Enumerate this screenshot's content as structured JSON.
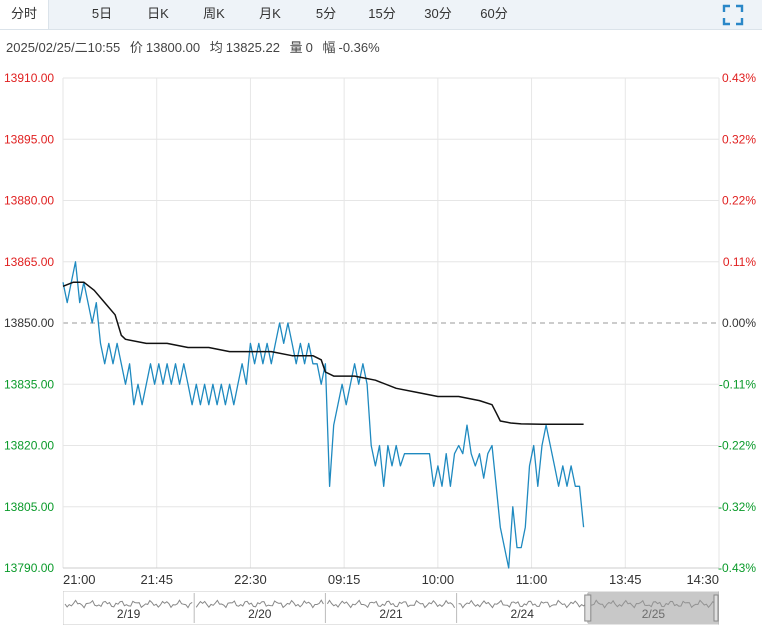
{
  "tabs": [
    {
      "label": "分时",
      "active": true
    },
    {
      "label": "5日",
      "active": false
    },
    {
      "label": "日K",
      "active": false
    },
    {
      "label": "周K",
      "active": false
    },
    {
      "label": "月K",
      "active": false
    },
    {
      "label": "5分",
      "active": false
    },
    {
      "label": "15分",
      "active": false
    },
    {
      "label": "30分",
      "active": false
    },
    {
      "label": "60分",
      "active": false
    }
  ],
  "info": {
    "datetime": "2025/02/25/二10:55",
    "price_label": "价",
    "price": "13800.00",
    "avg_label": "均",
    "avg": "13825.22",
    "volume_label": "量",
    "volume": "0",
    "change_label": "幅",
    "change": "-0.36%"
  },
  "colors": {
    "up": "#e02020",
    "down": "#0a9a2a",
    "price_line": "#1f8ac0",
    "avg_line": "#111111",
    "grid": "#e6e6e6",
    "base_line": "#999999"
  },
  "chart_data": {
    "type": "line",
    "y_left_ticks": [
      "13910.00",
      "13895.00",
      "13880.00",
      "13865.00",
      "13850.00",
      "13835.00",
      "13820.00",
      "13805.00",
      "13790.00"
    ],
    "y_right_ticks": [
      "0.43%",
      "0.32%",
      "0.22%",
      "0.11%",
      "0.00%",
      "-0.11%",
      "-0.22%",
      "-0.32%",
      "-0.43%"
    ],
    "ylim": [
      13790,
      13910
    ],
    "base_price": 13850,
    "x_ticks": [
      "21:00",
      "21:45",
      "22:30",
      "09:15",
      "10:00",
      "11:00",
      "13:45",
      "14:30"
    ],
    "x_tick_index": [
      0,
      45,
      90,
      135,
      180,
      225,
      270,
      315
    ],
    "x_count": 315,
    "series": [
      {
        "key": "price",
        "points": [
          [
            0,
            13860
          ],
          [
            2,
            13855
          ],
          [
            4,
            13860
          ],
          [
            6,
            13865
          ],
          [
            8,
            13855
          ],
          [
            10,
            13860
          ],
          [
            12,
            13855
          ],
          [
            14,
            13850
          ],
          [
            16,
            13855
          ],
          [
            18,
            13845
          ],
          [
            20,
            13840
          ],
          [
            22,
            13845
          ],
          [
            24,
            13840
          ],
          [
            26,
            13845
          ],
          [
            28,
            13840
          ],
          [
            30,
            13835
          ],
          [
            32,
            13840
          ],
          [
            34,
            13830
          ],
          [
            36,
            13835
          ],
          [
            38,
            13830
          ],
          [
            40,
            13835
          ],
          [
            42,
            13840
          ],
          [
            44,
            13835
          ],
          [
            46,
            13840
          ],
          [
            48,
            13835
          ],
          [
            50,
            13840
          ],
          [
            52,
            13835
          ],
          [
            54,
            13840
          ],
          [
            56,
            13835
          ],
          [
            58,
            13840
          ],
          [
            60,
            13835
          ],
          [
            62,
            13830
          ],
          [
            64,
            13835
          ],
          [
            66,
            13830
          ],
          [
            68,
            13835
          ],
          [
            70,
            13830
          ],
          [
            72,
            13835
          ],
          [
            74,
            13830
          ],
          [
            76,
            13835
          ],
          [
            78,
            13830
          ],
          [
            80,
            13835
          ],
          [
            82,
            13830
          ],
          [
            84,
            13835
          ],
          [
            86,
            13840
          ],
          [
            88,
            13835
          ],
          [
            90,
            13845
          ],
          [
            92,
            13840
          ],
          [
            94,
            13845
          ],
          [
            96,
            13840
          ],
          [
            98,
            13845
          ],
          [
            100,
            13840
          ],
          [
            102,
            13845
          ],
          [
            104,
            13850
          ],
          [
            106,
            13845
          ],
          [
            108,
            13850
          ],
          [
            110,
            13845
          ],
          [
            112,
            13840
          ],
          [
            114,
            13845
          ],
          [
            116,
            13840
          ],
          [
            118,
            13845
          ],
          [
            120,
            13840
          ],
          [
            122,
            13840
          ],
          [
            124,
            13835
          ],
          [
            126,
            13840
          ],
          [
            128,
            13810
          ],
          [
            130,
            13825
          ],
          [
            132,
            13830
          ],
          [
            134,
            13835
          ],
          [
            136,
            13830
          ],
          [
            138,
            13835
          ],
          [
            140,
            13840
          ],
          [
            142,
            13835
          ],
          [
            144,
            13840
          ],
          [
            146,
            13835
          ],
          [
            148,
            13820
          ],
          [
            150,
            13815
          ],
          [
            152,
            13820
          ],
          [
            154,
            13810
          ],
          [
            156,
            13820
          ],
          [
            158,
            13815
          ],
          [
            160,
            13820
          ],
          [
            162,
            13815
          ],
          [
            164,
            13818
          ],
          [
            166,
            13818
          ],
          [
            168,
            13818
          ],
          [
            170,
            13818
          ],
          [
            172,
            13818
          ],
          [
            174,
            13818
          ],
          [
            176,
            13818
          ],
          [
            178,
            13810
          ],
          [
            180,
            13815
          ],
          [
            182,
            13810
          ],
          [
            184,
            13818
          ],
          [
            186,
            13810
          ],
          [
            188,
            13818
          ],
          [
            190,
            13820
          ],
          [
            192,
            13818
          ],
          [
            194,
            13825
          ],
          [
            196,
            13818
          ],
          [
            198,
            13815
          ],
          [
            200,
            13818
          ],
          [
            202,
            13812
          ],
          [
            204,
            13818
          ],
          [
            206,
            13820
          ],
          [
            208,
            13810
          ],
          [
            210,
            13800
          ],
          [
            212,
            13795
          ],
          [
            214,
            13790
          ],
          [
            216,
            13805
          ],
          [
            218,
            13795
          ],
          [
            220,
            13795
          ],
          [
            222,
            13800
          ],
          [
            224,
            13815
          ],
          [
            226,
            13820
          ],
          [
            228,
            13810
          ],
          [
            230,
            13820
          ],
          [
            232,
            13825
          ],
          [
            234,
            13820
          ],
          [
            236,
            13815
          ],
          [
            238,
            13810
          ],
          [
            240,
            13815
          ],
          [
            242,
            13810
          ],
          [
            244,
            13815
          ],
          [
            246,
            13810
          ],
          [
            248,
            13810
          ],
          [
            250,
            13800
          ]
        ]
      },
      {
        "key": "average",
        "points": [
          [
            0,
            13859
          ],
          [
            5,
            13860
          ],
          [
            10,
            13860
          ],
          [
            15,
            13858
          ],
          [
            20,
            13855
          ],
          [
            25,
            13852
          ],
          [
            28,
            13847
          ],
          [
            30,
            13846
          ],
          [
            40,
            13845
          ],
          [
            50,
            13845
          ],
          [
            60,
            13844
          ],
          [
            70,
            13844
          ],
          [
            80,
            13843
          ],
          [
            90,
            13843
          ],
          [
            100,
            13843
          ],
          [
            110,
            13842
          ],
          [
            120,
            13842
          ],
          [
            124,
            13841
          ],
          [
            126,
            13838
          ],
          [
            130,
            13837
          ],
          [
            140,
            13837
          ],
          [
            150,
            13836
          ],
          [
            160,
            13834
          ],
          [
            170,
            13833
          ],
          [
            180,
            13832
          ],
          [
            190,
            13832
          ],
          [
            200,
            13831
          ],
          [
            206,
            13830
          ],
          [
            208,
            13828
          ],
          [
            210,
            13826
          ],
          [
            215,
            13825.5
          ],
          [
            220,
            13825.3
          ],
          [
            230,
            13825.2
          ],
          [
            240,
            13825.2
          ],
          [
            250,
            13825.2
          ]
        ]
      }
    ]
  },
  "navigator": {
    "dates": [
      "2/19",
      "2/20",
      "2/21",
      "2/24",
      "2/25"
    ]
  }
}
